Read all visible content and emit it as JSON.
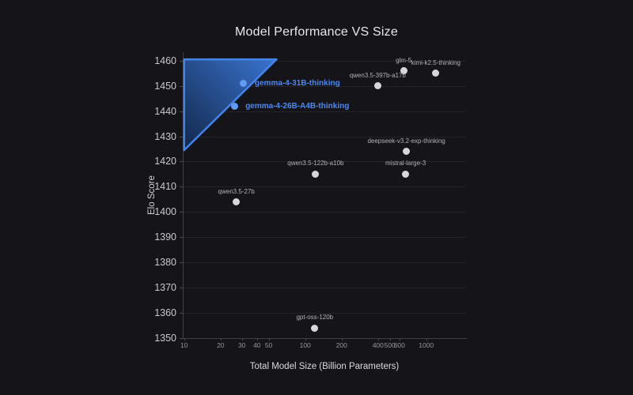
{
  "colors": {
    "background": "#141419",
    "accent_blue": "#4f88f0",
    "point_gray": "#d7d7db",
    "point_blue": "#5f9cf3",
    "region_stroke": "#4584e8",
    "region_fill_dark": "#12294e",
    "region_fill_bright": "#3d7ce0",
    "gridline": "rgba(255,255,255,0.07)"
  },
  "chart_data": {
    "type": "scatter",
    "title": "Model Performance VS Size",
    "xlabel": "Total Model Size (Billion Parameters)",
    "ylabel": "Elo Score",
    "x_scale": "log",
    "xlim": [
      10,
      2100
    ],
    "ylim": [
      1350,
      1463
    ],
    "x_ticks": [
      10,
      20,
      30,
      40,
      50,
      100,
      200,
      400,
      500,
      600,
      1000
    ],
    "y_ticks": [
      1350,
      1360,
      1370,
      1380,
      1390,
      1400,
      1410,
      1420,
      1430,
      1440,
      1450,
      1460
    ],
    "grid": "horizontal-only",
    "legend": "none",
    "points": [
      {
        "label": "gemma-4-31B-thinking",
        "x": 31,
        "y": 1451,
        "highlighted": true,
        "label_placement": "right"
      },
      {
        "label": "gemma-4-26B-A4B-thinking",
        "x": 26,
        "y": 1442,
        "highlighted": true,
        "label_placement": "right"
      },
      {
        "label": "glm-5",
        "x": 650,
        "y": 1456,
        "highlighted": false,
        "label_placement": "top"
      },
      {
        "label": "kimi-k2.5-thinking",
        "x": 1200,
        "y": 1455,
        "highlighted": false,
        "label_placement": "top"
      },
      {
        "label": "qwen3.5-397b-a17b",
        "x": 397,
        "y": 1450,
        "highlighted": false,
        "label_placement": "top"
      },
      {
        "label": "deepseek-v3.2-exp-thinking",
        "x": 685,
        "y": 1424,
        "highlighted": false,
        "label_placement": "top"
      },
      {
        "label": "qwen3.5-122b-a10b",
        "x": 122,
        "y": 1415,
        "highlighted": false,
        "label_placement": "top"
      },
      {
        "label": "mistral-large-3",
        "x": 675,
        "y": 1415,
        "highlighted": false,
        "label_placement": "top"
      },
      {
        "label": "qwen3.5-27b",
        "x": 27,
        "y": 1404,
        "highlighted": false,
        "label_placement": "top"
      },
      {
        "label": "gpt-oss-120b",
        "x": 120,
        "y": 1354,
        "highlighted": false,
        "label_placement": "top"
      }
    ],
    "region": {
      "name": "pareto-frontier-highlight",
      "shape": "triangle",
      "vertices": [
        [
          10,
          1460.5
        ],
        [
          58,
          1460.5
        ],
        [
          10,
          1424.5
        ]
      ]
    }
  }
}
